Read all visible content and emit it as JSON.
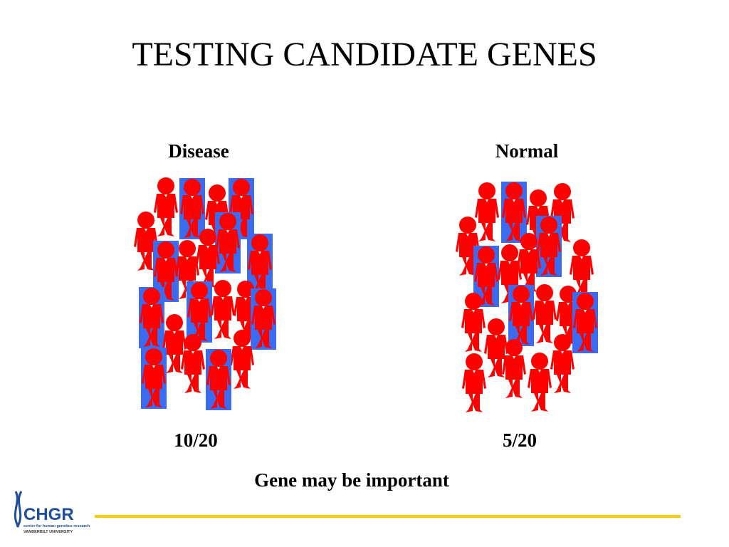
{
  "title": "TESTING CANDIDATE GENES",
  "groups": [
    {
      "label": "Disease",
      "ratio": "10/20"
    },
    {
      "label": "Normal",
      "ratio": "5/20"
    }
  ],
  "conclusion": "Gene may be important",
  "logo": {
    "name": "CHGR",
    "subtitle": "center for human genetics research",
    "university": "VANDERBILT UNIVERSITY"
  }
}
